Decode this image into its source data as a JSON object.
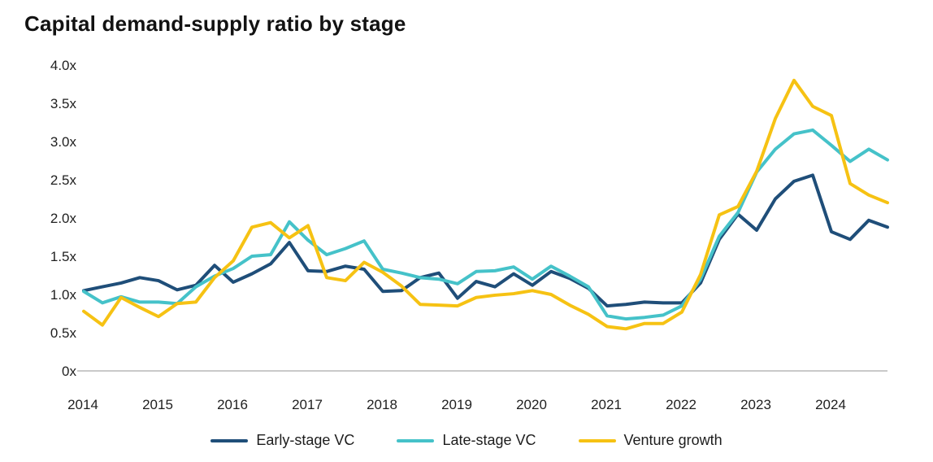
{
  "title": "Capital demand-supply ratio by stage",
  "chart_data": {
    "type": "line",
    "title": "Capital demand-supply ratio by stage",
    "xlabel": "",
    "ylabel": "",
    "ylim": [
      0,
      4.0
    ],
    "grid": false,
    "legend_position": "bottom",
    "axis_line_color": "#c9c9c9",
    "tick_label_color": "#1f1f1f",
    "y_tick_labels": [
      "4.0x",
      "3.5x",
      "3.0x",
      "2.5x",
      "2.0x",
      "1.5x",
      "1.0x",
      "0.5x",
      "0x"
    ],
    "x_year_ticks": [
      "2014",
      "2015",
      "2016",
      "2017",
      "2018",
      "2019",
      "2020",
      "2021",
      "2022",
      "2023",
      "2024"
    ],
    "x_quarters": [
      "2014 Q1",
      "2014 Q2",
      "2014 Q3",
      "2014 Q4",
      "2015 Q1",
      "2015 Q2",
      "2015 Q3",
      "2015 Q4",
      "2016 Q1",
      "2016 Q2",
      "2016 Q3",
      "2016 Q4",
      "2017 Q1",
      "2017 Q2",
      "2017 Q3",
      "2017 Q4",
      "2018 Q1",
      "2018 Q2",
      "2018 Q3",
      "2018 Q4",
      "2019 Q1",
      "2019 Q2",
      "2019 Q3",
      "2019 Q4",
      "2020 Q1",
      "2020 Q2",
      "2020 Q3",
      "2020 Q4",
      "2021 Q1",
      "2021 Q2",
      "2021 Q3",
      "2021 Q4",
      "2022 Q1",
      "2022 Q2",
      "2022 Q3",
      "2022 Q4",
      "2023 Q1",
      "2023 Q2",
      "2023 Q3",
      "2023 Q4",
      "2024 Q1",
      "2024 Q2",
      "2024 Q3",
      "2024 Q4"
    ],
    "series": [
      {
        "name": "Early-stage VC",
        "color": "#1F4E79",
        "values": [
          1.05,
          1.1,
          1.15,
          1.22,
          1.18,
          1.06,
          1.12,
          1.38,
          1.16,
          1.27,
          1.4,
          1.68,
          1.31,
          1.3,
          1.37,
          1.33,
          1.04,
          1.05,
          1.22,
          1.28,
          0.95,
          1.17,
          1.1,
          1.27,
          1.12,
          1.3,
          1.21,
          1.08,
          0.85,
          0.87,
          0.9,
          0.89,
          0.89,
          1.15,
          1.72,
          2.05,
          1.84,
          2.25,
          2.48,
          2.56,
          1.82,
          1.72,
          1.97,
          1.88
        ]
      },
      {
        "name": "Late-stage VC",
        "color": "#45C2C9",
        "values": [
          1.04,
          0.89,
          0.97,
          0.9,
          0.9,
          0.88,
          1.1,
          1.24,
          1.34,
          1.5,
          1.52,
          1.95,
          1.71,
          1.52,
          1.6,
          1.7,
          1.33,
          1.28,
          1.22,
          1.2,
          1.14,
          1.3,
          1.31,
          1.36,
          1.2,
          1.37,
          1.24,
          1.1,
          0.72,
          0.68,
          0.7,
          0.73,
          0.85,
          1.2,
          1.76,
          2.07,
          2.6,
          2.9,
          3.1,
          3.15,
          2.95,
          2.74,
          2.9,
          2.76
        ]
      },
      {
        "name": "Venture growth",
        "color": "#F6C213",
        "values": [
          0.78,
          0.6,
          0.96,
          0.83,
          0.71,
          0.88,
          0.9,
          1.22,
          1.44,
          1.88,
          1.94,
          1.74,
          1.9,
          1.22,
          1.18,
          1.42,
          1.29,
          1.11,
          0.87,
          0.86,
          0.85,
          0.96,
          0.99,
          1.01,
          1.05,
          1.0,
          0.86,
          0.74,
          0.58,
          0.55,
          0.62,
          0.62,
          0.77,
          1.26,
          2.04,
          2.15,
          2.61,
          3.3,
          3.8,
          3.46,
          3.34,
          2.45,
          2.3,
          2.2
        ]
      }
    ]
  }
}
